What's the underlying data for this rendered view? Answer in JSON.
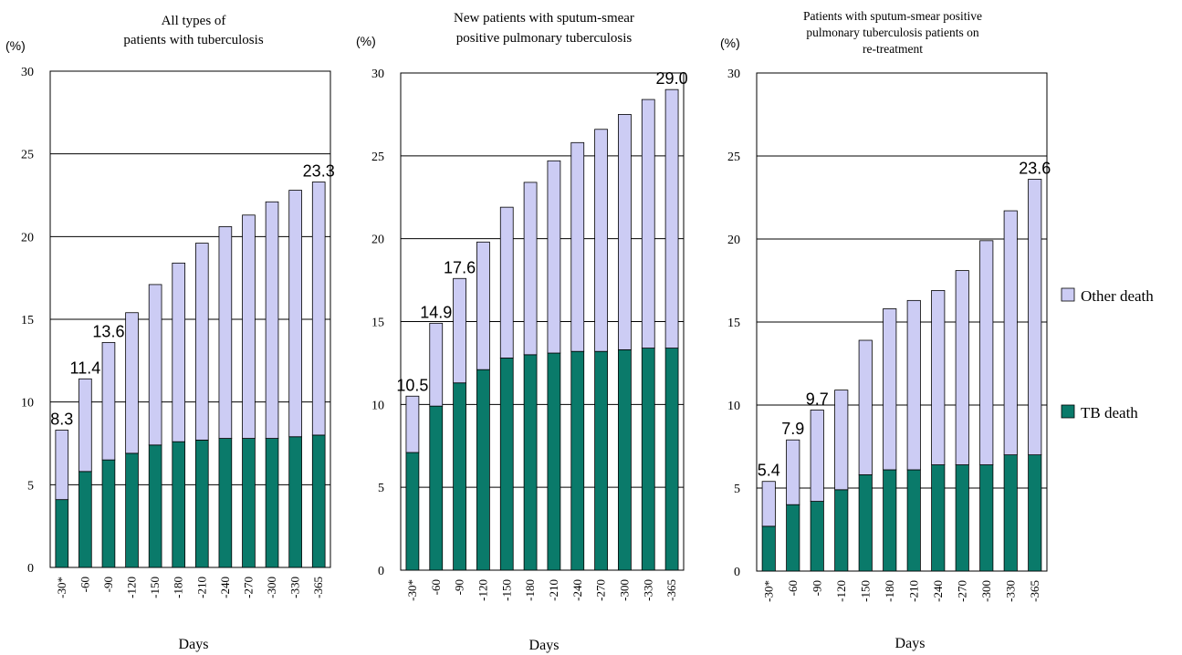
{
  "colors": {
    "tb_death": "#0a7a6a",
    "other_death": "#ccccf4",
    "bar_outline": "#000000"
  },
  "legend": [
    {
      "name": "Other death",
      "color_key": "other_death"
    },
    {
      "name": "TB death",
      "color_key": "tb_death"
    }
  ],
  "chart_data": [
    {
      "type": "bar",
      "stacked": true,
      "title_lines": [
        "All types of",
        "patients with tuberculosis"
      ],
      "unit": "(%)",
      "xlabel": "Days",
      "ylabel": "",
      "ylim": [
        0,
        30
      ],
      "yticks": [
        0,
        5,
        10,
        15,
        20,
        25,
        30
      ],
      "grid": true,
      "categories": [
        "-30*",
        "-60",
        "-90",
        "-120",
        "-150",
        "-180",
        "-210",
        "-240",
        "-270",
        "-300",
        "-330",
        "-365"
      ],
      "series": [
        {
          "name": "TB death",
          "values": [
            4.1,
            5.8,
            6.5,
            6.9,
            7.4,
            7.6,
            7.7,
            7.8,
            7.8,
            7.8,
            7.9,
            8.0
          ]
        },
        {
          "name": "Other death",
          "values": [
            4.2,
            5.6,
            7.1,
            8.5,
            9.7,
            10.8,
            11.9,
            12.8,
            13.5,
            14.3,
            14.9,
            15.3
          ]
        }
      ],
      "totals": [
        8.3,
        11.4,
        13.6,
        15.4,
        17.1,
        18.4,
        19.6,
        20.6,
        21.3,
        22.1,
        22.8,
        23.3
      ],
      "data_labels": [
        {
          "index": 0,
          "text": "8.3"
        },
        {
          "index": 1,
          "text": "11.4"
        },
        {
          "index": 2,
          "text": "13.6"
        },
        {
          "index": 11,
          "text": "23.3"
        }
      ]
    },
    {
      "type": "bar",
      "stacked": true,
      "title_lines": [
        "New patients with sputum-smear",
        "positive pulmonary tuberculosis"
      ],
      "unit": "(%)",
      "xlabel": "Days",
      "ylabel": "",
      "ylim": [
        0,
        30
      ],
      "yticks": [
        0,
        5,
        10,
        15,
        20,
        25,
        30
      ],
      "grid": true,
      "categories": [
        "-30*",
        "-60",
        "-90",
        "-120",
        "-150",
        "-180",
        "-210",
        "-240",
        "-270",
        "-300",
        "-330",
        "-365"
      ],
      "series": [
        {
          "name": "TB death",
          "values": [
            7.1,
            9.9,
            11.3,
            12.1,
            12.8,
            13.0,
            13.1,
            13.2,
            13.2,
            13.3,
            13.4,
            13.4
          ]
        },
        {
          "name": "Other death",
          "values": [
            3.4,
            5.0,
            6.3,
            7.7,
            9.1,
            10.4,
            11.6,
            12.6,
            13.4,
            14.2,
            15.0,
            15.6
          ]
        }
      ],
      "totals": [
        10.5,
        14.9,
        17.6,
        19.8,
        21.9,
        23.4,
        24.7,
        25.8,
        26.6,
        27.5,
        28.4,
        29.0
      ],
      "data_labels": [
        {
          "index": 0,
          "text": "10.5"
        },
        {
          "index": 1,
          "text": "14.9"
        },
        {
          "index": 2,
          "text": "17.6"
        },
        {
          "index": 11,
          "text": "29.0"
        }
      ]
    },
    {
      "type": "bar",
      "stacked": true,
      "title_lines": [
        "Patients with sputum-smear positive",
        "pulmonary tuberculosis patients on",
        "re-treatment"
      ],
      "unit": "(%)",
      "xlabel": "Days",
      "ylabel": "",
      "ylim": [
        0,
        30
      ],
      "yticks": [
        0,
        5,
        10,
        15,
        20,
        25,
        30
      ],
      "grid": true,
      "categories": [
        "-30*",
        "-60",
        "-90",
        "-120",
        "-150",
        "-180",
        "-210",
        "-240",
        "-270",
        "-300",
        "-330",
        "-365"
      ],
      "series": [
        {
          "name": "TB death",
          "values": [
            2.7,
            4.0,
            4.2,
            4.9,
            5.8,
            6.1,
            6.1,
            6.4,
            6.4,
            6.4,
            7.0,
            7.0
          ]
        },
        {
          "name": "Other death",
          "values": [
            2.7,
            3.9,
            5.5,
            6.0,
            8.1,
            9.7,
            10.2,
            10.5,
            11.7,
            13.5,
            14.7,
            16.6
          ]
        }
      ],
      "totals": [
        5.4,
        7.9,
        9.7,
        10.9,
        13.9,
        15.8,
        16.3,
        16.9,
        18.1,
        19.9,
        21.7,
        23.6
      ],
      "data_labels": [
        {
          "index": 0,
          "text": "5.4"
        },
        {
          "index": 1,
          "text": "7.9"
        },
        {
          "index": 2,
          "text": "9.7"
        },
        {
          "index": 11,
          "text": "23.6"
        }
      ]
    }
  ]
}
